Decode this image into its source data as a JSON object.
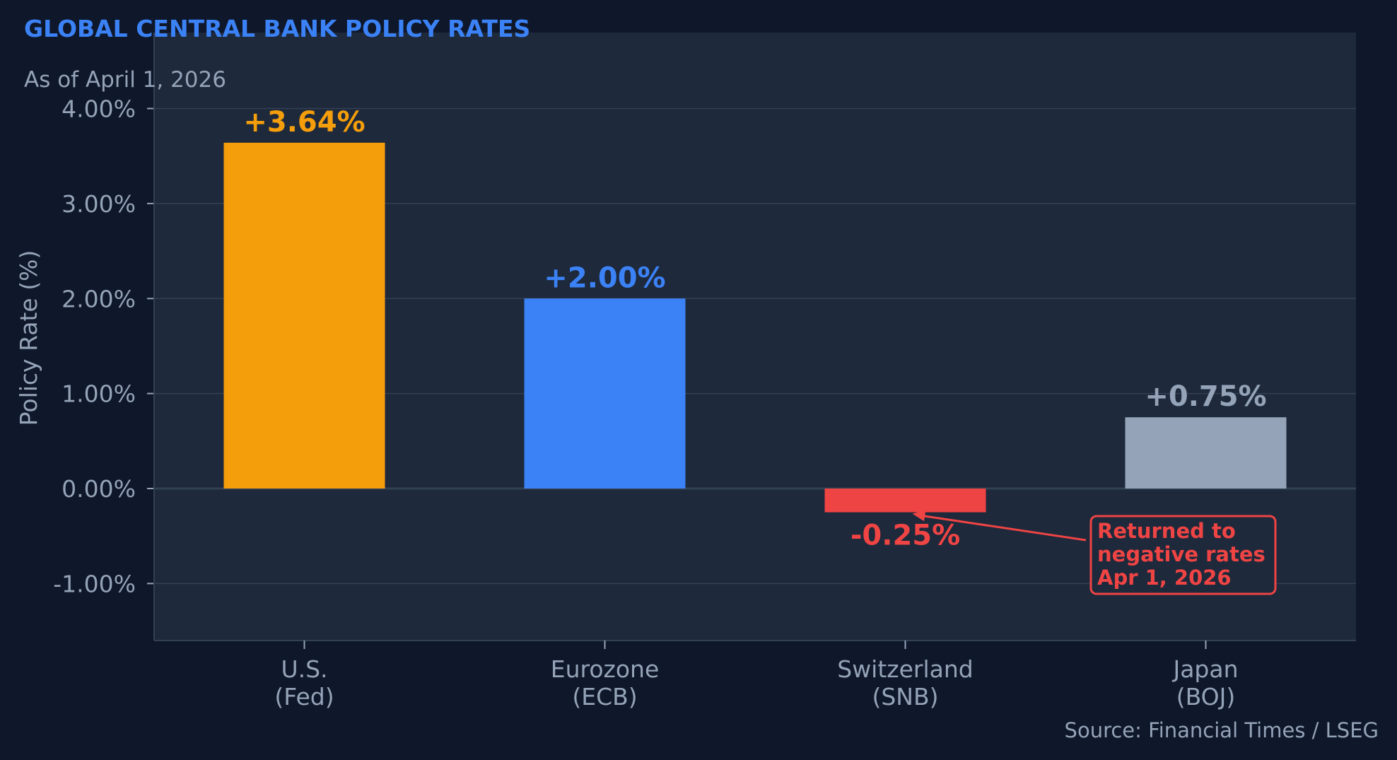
{
  "chart_data": {
    "type": "bar",
    "title": "GLOBAL CENTRAL BANK POLICY RATES",
    "subtitle": "As of April 1, 2026",
    "ylabel": "Policy Rate (%)",
    "xlabel": "",
    "ylim": [
      -1.6,
      4.8
    ],
    "yticks": [
      4.0,
      3.0,
      2.0,
      1.0,
      0.0,
      -1.0
    ],
    "ytick_labels": [
      "4.00%",
      "3.00%",
      "2.00%",
      "1.00%",
      "0.00%",
      "-1.00%"
    ],
    "grid": true,
    "legend": "none",
    "categories": [
      {
        "line1": "U.S.",
        "line2": "(Fed)"
      },
      {
        "line1": "Eurozone",
        "line2": "(ECB)"
      },
      {
        "line1": "Switzerland",
        "line2": "(SNB)"
      },
      {
        "line1": "Japan",
        "line2": "(BOJ)"
      }
    ],
    "values": [
      3.64,
      2.0,
      -0.25,
      0.75
    ],
    "value_labels": [
      "+3.64%",
      "+2.00%",
      "-0.25%",
      "+0.75%"
    ],
    "bar_colors": [
      "#f59e0b",
      "#3b82f6",
      "#ef4444",
      "#94a3b8"
    ],
    "annotation": {
      "lines": [
        "Returned to",
        "negative rates",
        "Apr 1, 2026"
      ],
      "target_category": 2,
      "color": "#ef4444"
    },
    "source": "Source: Financial Times / LSEG"
  },
  "colors": {
    "page_background": "#0f172a",
    "plot_background": "#1e293b",
    "grid": "#334155",
    "text_muted": "#94a3b8",
    "title": "#3b82f6"
  }
}
